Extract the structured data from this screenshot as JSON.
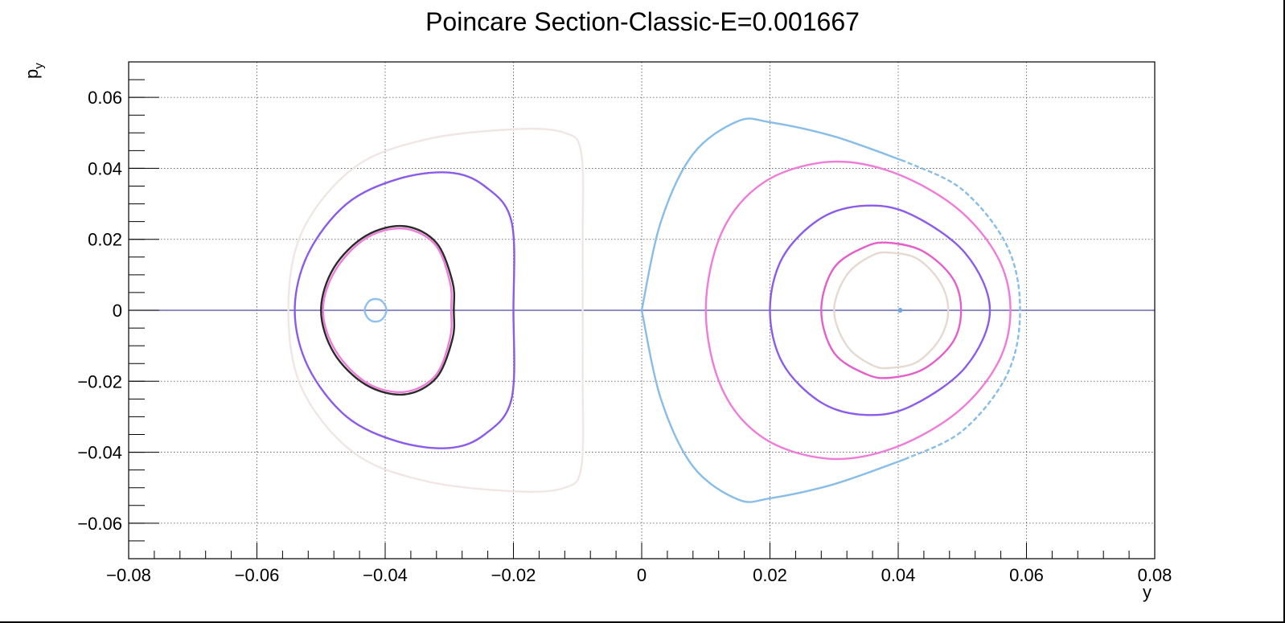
{
  "chart_data": {
    "type": "scatter",
    "title": "Poincare Section-Classic-E=0.001667",
    "xlabel": "y",
    "ylabel_main": "p",
    "ylabel_sub": "y",
    "xlim": [
      -0.08,
      0.08
    ],
    "ylim": [
      -0.07,
      0.07
    ],
    "xticks": [
      {
        "value": -0.08,
        "label": "−0.08"
      },
      {
        "value": -0.06,
        "label": "−0.06"
      },
      {
        "value": -0.04,
        "label": "−0.04"
      },
      {
        "value": -0.02,
        "label": "−0.02"
      },
      {
        "value": 0,
        "label": "0"
      },
      {
        "value": 0.02,
        "label": "0.02"
      },
      {
        "value": 0.04,
        "label": "0.04"
      },
      {
        "value": 0.06,
        "label": "0.06"
      },
      {
        "value": 0.08,
        "label": "0.08"
      }
    ],
    "yticks": [
      {
        "value": 0.06,
        "label": "0.06"
      },
      {
        "value": 0.04,
        "label": "0.04"
      },
      {
        "value": 0.02,
        "label": "0.02"
      },
      {
        "value": 0,
        "label": "0"
      },
      {
        "value": -0.02,
        "label": "−0.02"
      },
      {
        "value": -0.04,
        "label": "−0.04"
      },
      {
        "value": -0.06,
        "label": "−0.06"
      }
    ],
    "grid": true,
    "horizontal_line": {
      "y": 0,
      "color": "#4a4aa0"
    },
    "curves": [
      {
        "id": "left-outer-faint",
        "color": "#f0e6e4",
        "dashed": false,
        "points": [
          [
            -0.0551,
            0
          ],
          [
            -0.053,
            -0.022
          ],
          [
            -0.045,
            -0.04
          ],
          [
            -0.034,
            -0.048
          ],
          [
            -0.02,
            -0.051
          ],
          [
            -0.012,
            -0.05
          ],
          [
            -0.0094,
            -0.044
          ],
          [
            -0.0092,
            -0.02
          ],
          [
            -0.0092,
            0
          ],
          [
            -0.0092,
            0.02
          ],
          [
            -0.0094,
            0.044
          ],
          [
            -0.012,
            0.05
          ],
          [
            -0.02,
            0.051
          ],
          [
            -0.034,
            0.048
          ],
          [
            -0.045,
            0.04
          ],
          [
            -0.053,
            0.022
          ]
        ]
      },
      {
        "id": "left-purple",
        "color": "#8b5bea",
        "dashed": false,
        "points": [
          [
            -0.0541,
            0
          ],
          [
            -0.052,
            -0.016
          ],
          [
            -0.046,
            -0.03
          ],
          [
            -0.038,
            -0.037
          ],
          [
            -0.03,
            -0.0388
          ],
          [
            -0.0245,
            -0.035
          ],
          [
            -0.0203,
            -0.025
          ],
          [
            -0.02,
            0
          ],
          [
            -0.0203,
            0.025
          ],
          [
            -0.0245,
            0.035
          ],
          [
            -0.03,
            0.0388
          ],
          [
            -0.038,
            0.037
          ],
          [
            -0.046,
            0.03
          ],
          [
            -0.052,
            0.016
          ]
        ]
      },
      {
        "id": "left-dark",
        "color": "#2a2a2a",
        "dashed": false,
        "points": [
          [
            -0.05,
            0
          ],
          [
            -0.048,
            -0.012
          ],
          [
            -0.043,
            -0.021
          ],
          [
            -0.037,
            -0.0237
          ],
          [
            -0.032,
            -0.019
          ],
          [
            -0.0295,
            -0.008
          ],
          [
            -0.0293,
            0
          ],
          [
            -0.0295,
            0.008
          ],
          [
            -0.032,
            0.019
          ],
          [
            -0.037,
            0.0237
          ],
          [
            -0.043,
            0.021
          ],
          [
            -0.048,
            0.012
          ]
        ]
      },
      {
        "id": "left-pink",
        "color": "#ef7cd8",
        "dashed": false,
        "points": [
          [
            -0.0497,
            0
          ],
          [
            -0.0477,
            -0.0115
          ],
          [
            -0.0428,
            -0.0205
          ],
          [
            -0.037,
            -0.023
          ],
          [
            -0.0322,
            -0.0185
          ],
          [
            -0.0299,
            -0.008
          ],
          [
            -0.0297,
            0
          ],
          [
            -0.0299,
            0.008
          ],
          [
            -0.0322,
            0.0185
          ],
          [
            -0.037,
            0.023
          ],
          [
            -0.0428,
            0.0205
          ],
          [
            -0.0477,
            0.0115
          ]
        ]
      },
      {
        "id": "left-small-blue",
        "color": "#8fc0ee",
        "dashed": false,
        "points": [
          [
            -0.0432,
            0
          ],
          [
            -0.0426,
            -0.0024
          ],
          [
            -0.0415,
            -0.0032
          ],
          [
            -0.0404,
            -0.0024
          ],
          [
            -0.0398,
            0
          ],
          [
            -0.0404,
            0.0024
          ],
          [
            -0.0415,
            0.0032
          ],
          [
            -0.0426,
            0.0024
          ]
        ]
      },
      {
        "id": "right-outer-blue",
        "color": "#88bde8",
        "dashed": false,
        "points": [
          [
            0.0,
            0
          ],
          [
            0.003,
            -0.025
          ],
          [
            0.008,
            -0.044
          ],
          [
            0.015,
            -0.0533
          ],
          [
            0.02,
            -0.053
          ],
          [
            0.03,
            -0.049
          ],
          [
            0.041,
            -0.042
          ]
        ]
      },
      {
        "id": "right-outer-blue-b",
        "color": "#88bde8",
        "dashed": true,
        "points": [
          [
            0.041,
            -0.042
          ],
          [
            0.05,
            -0.034
          ],
          [
            0.057,
            -0.018
          ],
          [
            0.059,
            0
          ],
          [
            0.057,
            0.018
          ],
          [
            0.05,
            0.034
          ],
          [
            0.041,
            0.042
          ]
        ]
      },
      {
        "id": "right-outer-blue-c",
        "color": "#88bde8",
        "dashed": false,
        "points": [
          [
            0.041,
            0.042
          ],
          [
            0.03,
            0.049
          ],
          [
            0.02,
            0.053
          ],
          [
            0.015,
            0.0533
          ],
          [
            0.008,
            0.044
          ],
          [
            0.003,
            0.025
          ],
          [
            0.0,
            0
          ]
        ]
      },
      {
        "id": "right-pink-large",
        "color": "#ef7cd8",
        "dashed": false,
        "points": [
          [
            0.01,
            0
          ],
          [
            0.0125,
            -0.022
          ],
          [
            0.019,
            -0.036
          ],
          [
            0.029,
            -0.0418
          ],
          [
            0.039,
            -0.039
          ],
          [
            0.049,
            -0.029
          ],
          [
            0.0555,
            -0.015
          ],
          [
            0.0575,
            0
          ],
          [
            0.0555,
            0.015
          ],
          [
            0.049,
            0.029
          ],
          [
            0.039,
            0.039
          ],
          [
            0.029,
            0.0418
          ],
          [
            0.019,
            0.036
          ],
          [
            0.0125,
            0.022
          ]
        ]
      },
      {
        "id": "right-purple",
        "color": "#8b5bea",
        "dashed": false,
        "points": [
          [
            0.02,
            0
          ],
          [
            0.022,
            -0.015
          ],
          [
            0.028,
            -0.026
          ],
          [
            0.035,
            -0.0295
          ],
          [
            0.042,
            -0.027
          ],
          [
            0.0505,
            -0.016
          ],
          [
            0.0543,
            0
          ],
          [
            0.0505,
            0.016
          ],
          [
            0.042,
            0.027
          ],
          [
            0.035,
            0.0295
          ],
          [
            0.028,
            0.026
          ],
          [
            0.022,
            0.015
          ]
        ]
      },
      {
        "id": "right-pink-small",
        "color": "#e45fc9",
        "dashed": false,
        "points": [
          [
            0.028,
            0
          ],
          [
            0.03,
            -0.012
          ],
          [
            0.035,
            -0.018
          ],
          [
            0.0388,
            -0.019
          ],
          [
            0.044,
            -0.0165
          ],
          [
            0.0485,
            -0.009
          ],
          [
            0.0498,
            0
          ],
          [
            0.0485,
            0.009
          ],
          [
            0.044,
            0.0165
          ],
          [
            0.0388,
            0.019
          ],
          [
            0.035,
            0.018
          ],
          [
            0.03,
            0.012
          ]
        ]
      },
      {
        "id": "right-beige",
        "color": "#e6d8d2",
        "dashed": false,
        "points": [
          [
            0.03,
            0
          ],
          [
            0.032,
            -0.01
          ],
          [
            0.036,
            -0.0155
          ],
          [
            0.039,
            -0.0162
          ],
          [
            0.043,
            -0.0145
          ],
          [
            0.0465,
            -0.008
          ],
          [
            0.0478,
            0
          ],
          [
            0.0465,
            0.008
          ],
          [
            0.043,
            0.0145
          ],
          [
            0.039,
            0.0162
          ],
          [
            0.036,
            0.0155
          ],
          [
            0.032,
            0.01
          ]
        ]
      }
    ],
    "points": [
      {
        "x": 0.0403,
        "y": 0,
        "color": "#6fa8e0"
      }
    ]
  }
}
